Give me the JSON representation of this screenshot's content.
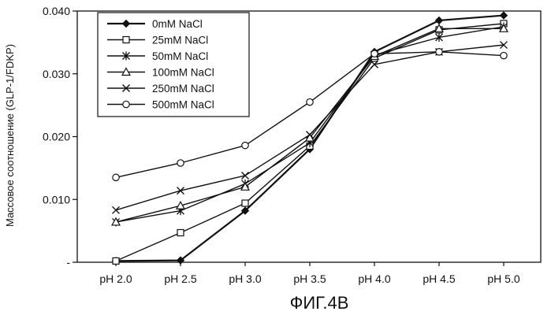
{
  "chart_data": {
    "type": "line",
    "title": "",
    "xlabel": "",
    "ylabel": "Массовое соотношение (GLP-1/FDKP)",
    "caption": "ФИГ.4В",
    "categories": [
      "pH 2.0",
      "pH 2.5",
      "pH 3.0",
      "pH 3.5",
      "pH 4.0",
      "pH 4.5",
      "pH 5.0"
    ],
    "y_ticks": [
      {
        "value": 0,
        "label": "-"
      },
      {
        "value": 0.01,
        "label": "0.010"
      },
      {
        "value": 0.02,
        "label": "0.020"
      },
      {
        "value": 0.03,
        "label": "0.030"
      },
      {
        "value": 0.04,
        "label": "0.040"
      }
    ],
    "ylim": [
      0,
      0.04
    ],
    "grid": false,
    "legend_position": "top-left",
    "series": [
      {
        "name": "0mM NaCl",
        "marker": "diamond",
        "values": [
          0.0002,
          0.0003,
          0.0082,
          0.018,
          0.0335,
          0.0385,
          0.0393
        ]
      },
      {
        "name": "25mM NaCl",
        "marker": "square",
        "values": [
          0.0002,
          0.0047,
          0.0094,
          0.0185,
          0.0325,
          0.037,
          0.038
        ]
      },
      {
        "name": "50mM NaCl",
        "marker": "asterisk",
        "values": [
          0.0064,
          0.0082,
          0.0125,
          0.019,
          0.033,
          0.0358,
          0.0375
        ]
      },
      {
        "name": "100mM NaCl",
        "marker": "triangle",
        "values": [
          0.0064,
          0.009,
          0.012,
          0.0198,
          0.0328,
          0.0372,
          0.0372
        ]
      },
      {
        "name": "250mM NaCl",
        "marker": "x",
        "values": [
          0.0083,
          0.0114,
          0.0138,
          0.0203,
          0.0315,
          0.0335,
          0.0346
        ]
      },
      {
        "name": "500mM NaCl",
        "marker": "circle",
        "values": [
          0.0135,
          0.0158,
          0.0186,
          0.0255,
          0.0332,
          0.0335,
          0.0329
        ]
      }
    ]
  }
}
